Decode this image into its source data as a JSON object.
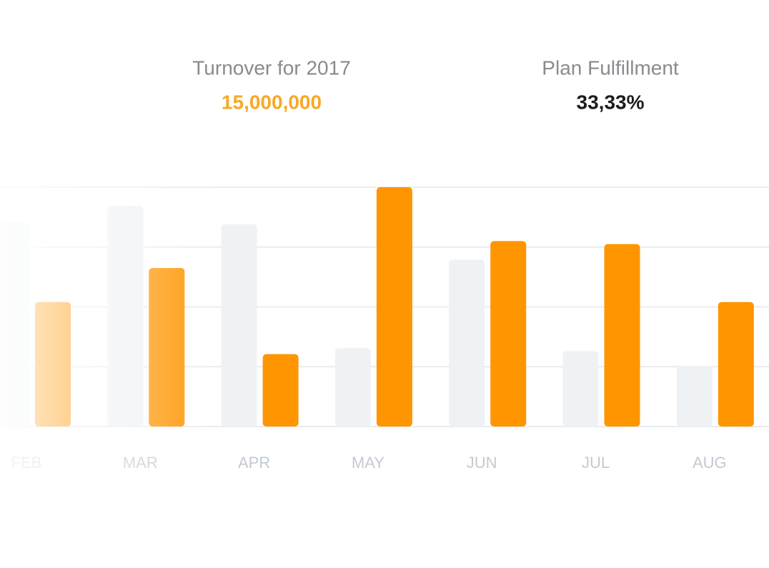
{
  "stats": [
    {
      "label": "Turnover for 2017",
      "value": "15,000,000"
    },
    {
      "label": "Plan Fulfillment",
      "value": "33,33%"
    }
  ],
  "chart_data": {
    "type": "bar",
    "categories": [
      "FEB",
      "MAR",
      "APR",
      "MAY",
      "JUN",
      "JUL",
      "AUG"
    ],
    "series": [
      {
        "color": "#eff2f5",
        "values": [
          3.42,
          3.69,
          3.38,
          1.31,
          2.79,
          1.26,
          1.01
        ]
      },
      {
        "color": "#ff9500",
        "values": [
          2.08,
          2.65,
          1.21,
          4.0,
          3.1,
          3.05,
          2.08
        ]
      }
    ],
    "ylim": [
      0,
      4
    ],
    "yticks": [
      0,
      1,
      2,
      3,
      4
    ],
    "grid": true
  }
}
